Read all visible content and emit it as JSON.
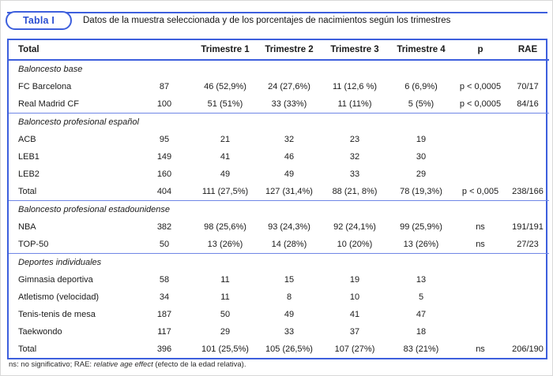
{
  "colors": {
    "accent": "#3d5fdd",
    "separator": "#6f86e6",
    "badge_text": "#2b4fd2",
    "text": "#1b1b1b"
  },
  "badge": {
    "label": "Tabla I"
  },
  "title": "Datos de la muestra seleccionada y de los porcentajes de nacimientos según los trimestres",
  "table": {
    "columns": [
      "Total",
      "",
      "Trimestre 1",
      "Trimestre 2",
      "Trimestre 3",
      "Trimestre 4",
      "p",
      "RAE"
    ],
    "rows": [
      {
        "type": "section",
        "label": "Baloncesto base"
      },
      {
        "type": "data",
        "label": "FC Barcelona",
        "total": "87",
        "t1": "46 (52,9%)",
        "t2": "24 (27,6%)",
        "t3": "11 (12,6 %)",
        "t4": "6 (6,9%)",
        "p": "p < 0,0005",
        "rae": "70/17"
      },
      {
        "type": "data",
        "label": "Real Madrid CF",
        "total": "100",
        "t1": "51 (51%)",
        "t2": "33 (33%)",
        "t3": "11 (11%)",
        "t4": "5 (5%)",
        "p": "p < 0,0005",
        "rae": "84/16"
      },
      {
        "type": "section",
        "label": "Baloncesto profesional español"
      },
      {
        "type": "data",
        "label": "ACB",
        "total": "95",
        "t1": "21",
        "t2": "32",
        "t3": "23",
        "t4": "19",
        "p": "",
        "rae": ""
      },
      {
        "type": "data",
        "label": "LEB1",
        "total": "149",
        "t1": "41",
        "t2": "46",
        "t3": "32",
        "t4": "30",
        "p": "",
        "rae": ""
      },
      {
        "type": "data",
        "label": "LEB2",
        "total": "160",
        "t1": "49",
        "t2": "49",
        "t3": "33",
        "t4": "29",
        "p": "",
        "rae": ""
      },
      {
        "type": "data",
        "label": "Total",
        "total": "404",
        "t1": "111 (27,5%)",
        "t2": "127 (31,4%)",
        "t3": "88 (21, 8%)",
        "t4": "78 (19,3%)",
        "p": "p < 0,005",
        "rae": "238/166"
      },
      {
        "type": "section",
        "label": "Baloncesto profesional estadounidense"
      },
      {
        "type": "data",
        "label": "NBA",
        "total": "382",
        "t1": "98 (25,6%)",
        "t2": "93 (24,3%)",
        "t3": "92 (24,1%)",
        "t4": "99 (25,9%)",
        "p": "ns",
        "rae": "191/191"
      },
      {
        "type": "data",
        "label": "TOP-50",
        "total": "50",
        "t1": "13 (26%)",
        "t2": "14 (28%)",
        "t3": "10 (20%)",
        "t4": "13 (26%)",
        "p": "ns",
        "rae": "27/23"
      },
      {
        "type": "section",
        "label": "Deportes individuales"
      },
      {
        "type": "data",
        "label": "Gimnasia deportiva",
        "total": "58",
        "t1": "11",
        "t2": "15",
        "t3": "19",
        "t4": "13",
        "p": "",
        "rae": ""
      },
      {
        "type": "data",
        "label": "Atletismo (velocidad)",
        "total": "34",
        "t1": "11",
        "t2": "8",
        "t3": "10",
        "t4": "5",
        "p": "",
        "rae": ""
      },
      {
        "type": "data",
        "label": "Tenis-tenis de mesa",
        "total": "187",
        "t1": "50",
        "t2": "49",
        "t3": "41",
        "t4": "47",
        "p": "",
        "rae": ""
      },
      {
        "type": "data",
        "label": "Taekwondo",
        "total": "117",
        "t1": "29",
        "t2": "33",
        "t3": "37",
        "t4": "18",
        "p": "",
        "rae": ""
      },
      {
        "type": "data",
        "label": "Total",
        "total": "396",
        "t1": "101 (25,5%)",
        "t2": "105 (26,5%)",
        "t3": "107 (27%)",
        "t4": "83 (21%)",
        "p": "ns",
        "rae": "206/190"
      }
    ]
  },
  "footnote": {
    "prefix": "ns: no significativo; RAE: ",
    "italic": "relative age effect",
    "suffix": " (efecto de la edad relativa)."
  }
}
